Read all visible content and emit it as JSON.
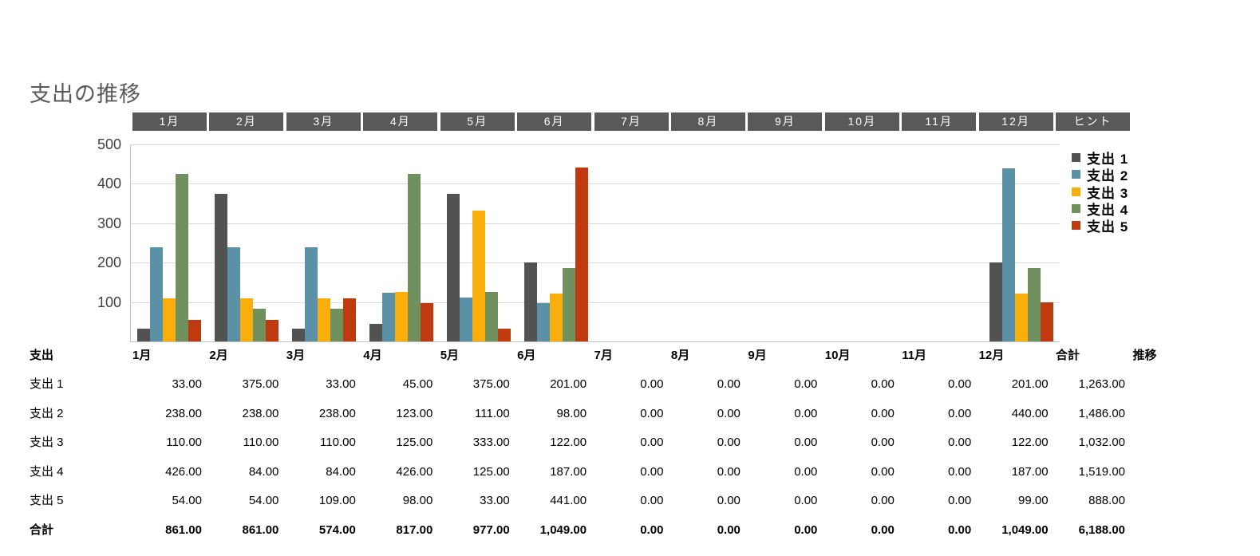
{
  "title": "支出の推移",
  "tabs": {
    "months": [
      "1月",
      "2月",
      "3月",
      "4月",
      "5月",
      "6月",
      "7月",
      "8月",
      "9月",
      "10月",
      "11月",
      "12月"
    ],
    "hint_label": "ヒント",
    "background": "#595959",
    "text_color": "#FFFFFF"
  },
  "chart_data": {
    "type": "bar",
    "title": "支出の推移",
    "categories": [
      "1月",
      "2月",
      "3月",
      "4月",
      "5月",
      "6月",
      "7月",
      "8月",
      "9月",
      "10月",
      "11月",
      "12月"
    ],
    "series": [
      {
        "name": "支出 1",
        "color": "#525252",
        "values": [
          33,
          375,
          33,
          45,
          375,
          201,
          0,
          0,
          0,
          0,
          0,
          201
        ]
      },
      {
        "name": "支出 2",
        "color": "#5B91A6",
        "values": [
          238,
          238,
          238,
          123,
          111,
          98,
          0,
          0,
          0,
          0,
          0,
          440
        ]
      },
      {
        "name": "支出 3",
        "color": "#F9AE0C",
        "values": [
          110,
          110,
          110,
          125,
          333,
          122,
          0,
          0,
          0,
          0,
          0,
          122
        ]
      },
      {
        "name": "支出 4",
        "color": "#70905E",
        "values": [
          426,
          84,
          84,
          426,
          125,
          187,
          0,
          0,
          0,
          0,
          0,
          187
        ]
      },
      {
        "name": "支出 5",
        "color": "#C03A10",
        "values": [
          54,
          54,
          109,
          98,
          33,
          441,
          0,
          0,
          0,
          0,
          0,
          99
        ]
      }
    ],
    "ylim": [
      0,
      500
    ],
    "yticks": [
      100,
      200,
      300,
      400,
      500
    ],
    "grid": true,
    "legend_position": "right",
    "gridline_color": "#D9D9D9",
    "axis_line_color": "#BFBFBF"
  },
  "table": {
    "corner_header": "支出",
    "month_headers": [
      "1月",
      "2月",
      "3月",
      "4月",
      "5月",
      "6月",
      "7月",
      "8月",
      "9月",
      "10月",
      "11月",
      "12月"
    ],
    "total_header": "合計",
    "trend_header": "推移",
    "rows": [
      {
        "label": "支出 1",
        "values": [
          33,
          375,
          33,
          45,
          375,
          201,
          0,
          0,
          0,
          0,
          0,
          201
        ],
        "total": 1263
      },
      {
        "label": "支出 2",
        "values": [
          238,
          238,
          238,
          123,
          111,
          98,
          0,
          0,
          0,
          0,
          0,
          440
        ],
        "total": 1486
      },
      {
        "label": "支出 3",
        "values": [
          110,
          110,
          110,
          125,
          333,
          122,
          0,
          0,
          0,
          0,
          0,
          122
        ],
        "total": 1032
      },
      {
        "label": "支出 4",
        "values": [
          426,
          84,
          84,
          426,
          125,
          187,
          0,
          0,
          0,
          0,
          0,
          187
        ],
        "total": 1519
      },
      {
        "label": "支出 5",
        "values": [
          54,
          54,
          109,
          98,
          33,
          441,
          0,
          0,
          0,
          0,
          0,
          99
        ],
        "total": 888
      }
    ],
    "total_row": {
      "label": "合計",
      "values": [
        861,
        861,
        574,
        817,
        977,
        1049,
        0,
        0,
        0,
        0,
        0,
        1049
      ],
      "total": 6188
    }
  }
}
